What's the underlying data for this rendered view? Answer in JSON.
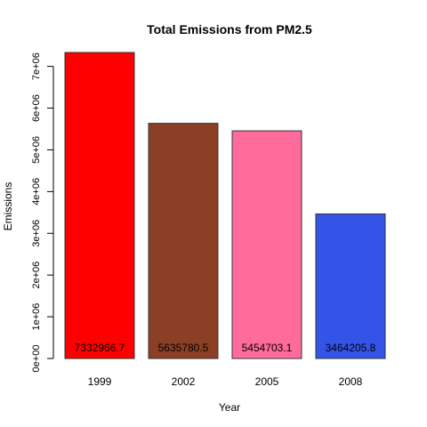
{
  "chart_data": {
    "type": "bar",
    "title": "Total Emissions from PM2.5",
    "xlabel": "Year",
    "ylabel": "Emissions",
    "categories": [
      "1999",
      "2002",
      "2005",
      "2008"
    ],
    "values": [
      7332966.7,
      5635780.5,
      5454703.1,
      3464205.8
    ],
    "data_labels": [
      "7332966.7",
      "5635780.5",
      "5454703.1",
      "3464205.8"
    ],
    "colors": [
      "#FF0000",
      "#8B4025",
      "#FF6B9B",
      "#3454E8"
    ],
    "ylim": [
      0,
      7332966.7
    ],
    "yticks": [
      0,
      1000000,
      2000000,
      3000000,
      4000000,
      5000000,
      6000000,
      7000000
    ],
    "ytick_labels": [
      "0e+00",
      "1e+06",
      "2e+06",
      "3e+06",
      "4e+06",
      "5e+06",
      "6e+06",
      "7e+06"
    ],
    "grid": false,
    "legend": "none"
  }
}
